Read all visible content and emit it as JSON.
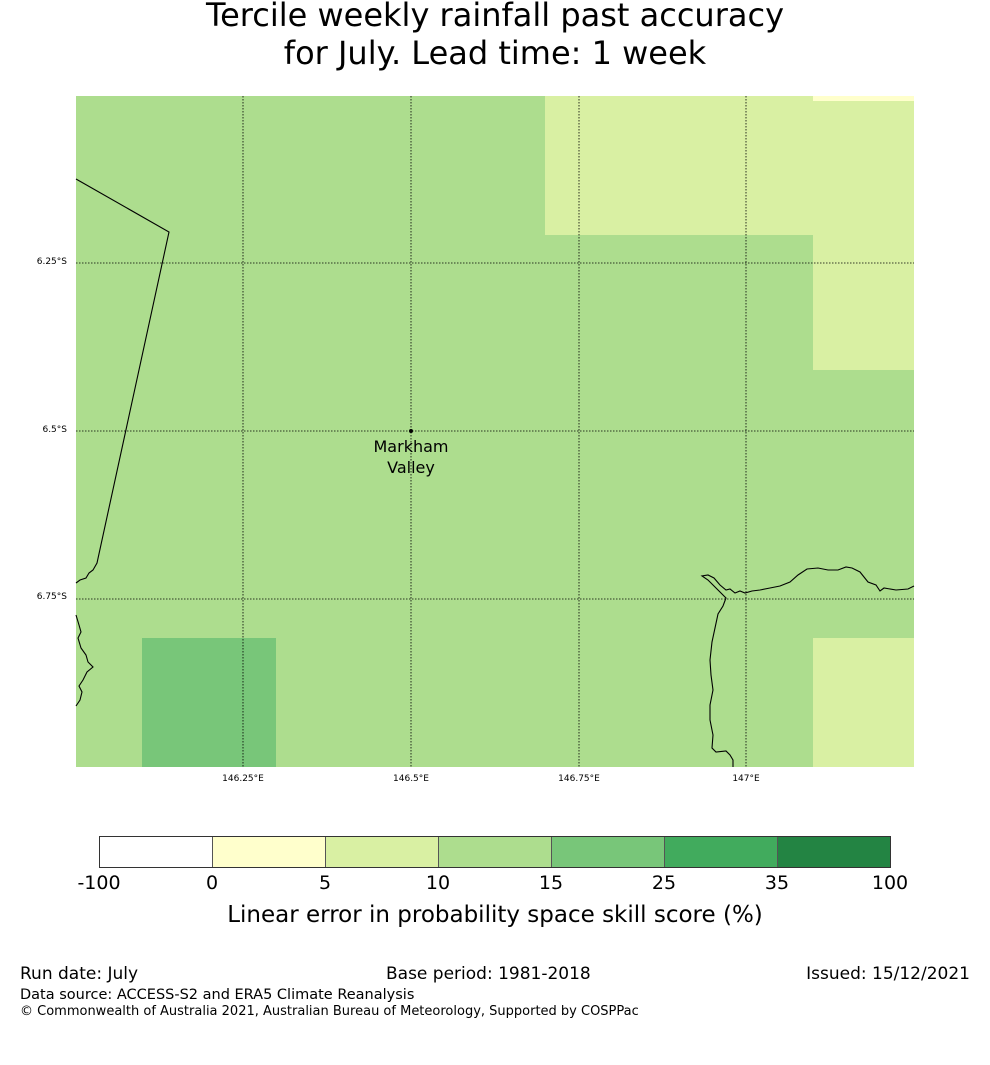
{
  "title": {
    "line1": "Tercile weekly rainfall past accuracy",
    "line2": "for July. Lead time: 1 week"
  },
  "map": {
    "latitude_labels": [
      "6.25°S",
      "6.5°S",
      "6.75°S"
    ],
    "longitude_labels": [
      "146.25°E",
      "146.5°E",
      "146.75°E",
      "147°E"
    ],
    "place": {
      "name_line1": "Markham",
      "name_line2": "Valley"
    },
    "colors": {
      "0_to_5": "#ffffcc",
      "5_to_10": "#d9f0a3",
      "10_to_15": "#addd8e",
      "15_to_25": "#78c679",
      "25_to_35": "#41ab5d",
      "35_to_100": "#238443",
      "below_0": "#ffffff"
    }
  },
  "legend": {
    "ticks": [
      "-100",
      "0",
      "5",
      "10",
      "15",
      "25",
      "35",
      "100"
    ],
    "colors": [
      "#ffffff",
      "#ffffcc",
      "#d9f0a3",
      "#addd8e",
      "#78c679",
      "#41ab5d",
      "#238443"
    ],
    "label": "Linear error in probability space skill score (%)"
  },
  "footer": {
    "run_date": "Run date: July",
    "base_period": "Base period: 1981-2018",
    "issued": "Issued: 15/12/2021",
    "data_source": "Data source: ACCESS-S2 and ERA5 Climate Reanalysis",
    "copyright": "© Commonwealth of Australia 2021, Australian Bureau of Meteorology, Supported by COSPPac"
  }
}
